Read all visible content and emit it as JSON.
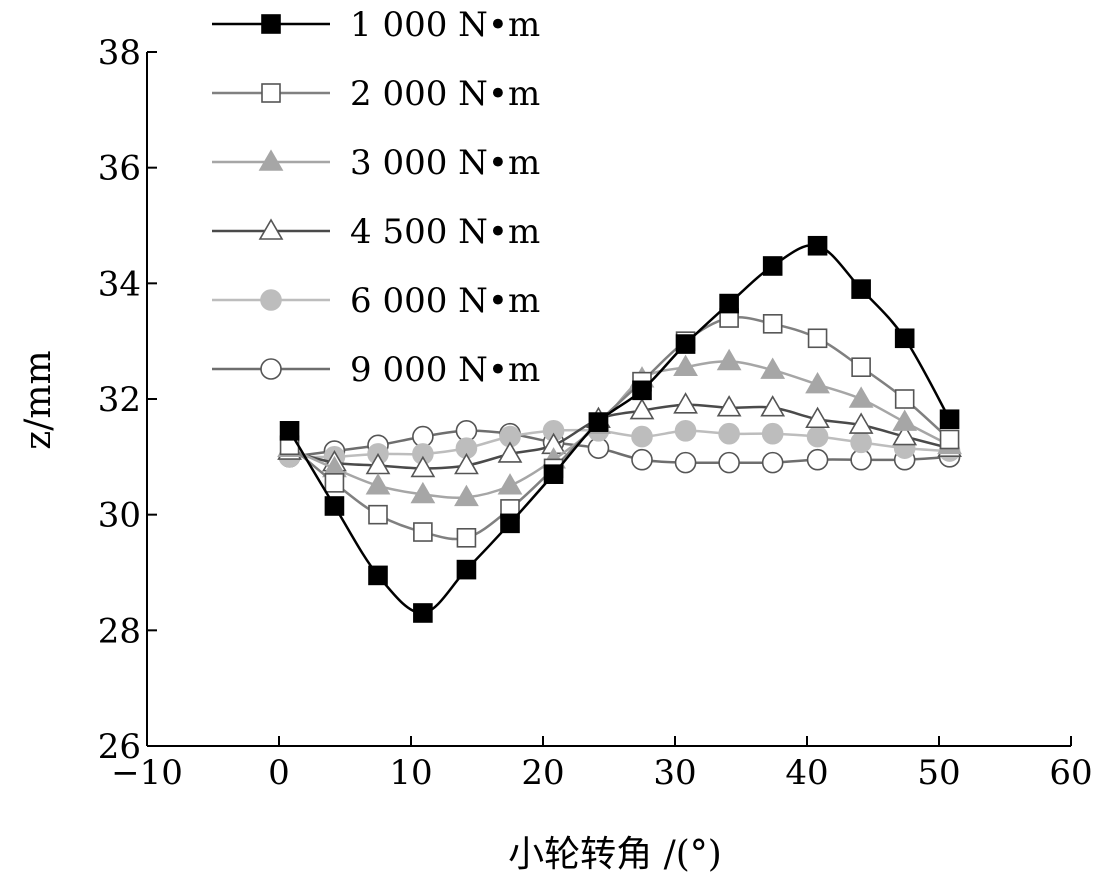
{
  "chart_data": {
    "type": "line",
    "title": "",
    "xlabel": "小轮转角 /(°)",
    "ylabel": "z/mm",
    "xlim": [
      -10,
      60
    ],
    "ylim": [
      26,
      38
    ],
    "xticks": [
      -10,
      0,
      10,
      20,
      30,
      40,
      50,
      60
    ],
    "yticks": [
      26,
      28,
      30,
      32,
      34,
      36,
      38
    ],
    "xtick_labels": [
      "−10",
      "0",
      "10",
      "20",
      "30",
      "40",
      "50",
      "60"
    ],
    "ytick_labels": [
      "26",
      "28",
      "30",
      "32",
      "34",
      "36",
      "38"
    ],
    "grid": false,
    "legend_position": "top-left",
    "x": [
      0.8,
      4.2,
      7.5,
      10.9,
      14.2,
      17.5,
      20.8,
      24.2,
      27.5,
      30.8,
      34.1,
      37.4,
      40.8,
      44.1,
      47.4,
      50.8
    ],
    "series": [
      {
        "name": "1 000 N•m",
        "color": "#000000",
        "marker": "square",
        "filled": true,
        "values": [
          31.45,
          30.15,
          28.95,
          28.3,
          29.05,
          29.85,
          30.7,
          31.6,
          32.15,
          32.95,
          33.65,
          34.3,
          34.65,
          33.9,
          33.05,
          31.65
        ]
      },
      {
        "name": "2 000 N•m",
        "color": "#808080",
        "marker": "square",
        "filled": false,
        "values": [
          31.2,
          30.55,
          30.0,
          29.7,
          29.6,
          30.1,
          30.8,
          31.6,
          32.3,
          33.0,
          33.4,
          33.3,
          33.05,
          32.55,
          32.0,
          31.3
        ]
      },
      {
        "name": "3 000 N•m",
        "color": "#a6a6a6",
        "marker": "triangle",
        "filled": true,
        "values": [
          31.15,
          30.8,
          30.5,
          30.35,
          30.3,
          30.5,
          30.95,
          31.55,
          32.35,
          32.55,
          32.65,
          32.5,
          32.25,
          32.0,
          31.6,
          31.2
        ]
      },
      {
        "name": "4 500 N•m",
        "color": "#4a4a4a",
        "marker": "triangle",
        "filled": false,
        "values": [
          31.1,
          30.9,
          30.85,
          30.8,
          30.85,
          31.05,
          31.2,
          31.65,
          31.8,
          31.9,
          31.85,
          31.85,
          31.65,
          31.55,
          31.35,
          31.15
        ]
      },
      {
        "name": "6 000 N•m",
        "color": "#bdbdbd",
        "marker": "circle",
        "filled": true,
        "values": [
          31.0,
          31.0,
          31.05,
          31.05,
          31.15,
          31.35,
          31.45,
          31.45,
          31.35,
          31.45,
          31.4,
          31.4,
          31.35,
          31.25,
          31.15,
          31.1
        ]
      },
      {
        "name": "9 000 N•m",
        "color": "#6e6e6e",
        "marker": "circle",
        "filled": false,
        "values": [
          31.0,
          31.1,
          31.2,
          31.35,
          31.45,
          31.4,
          31.25,
          31.15,
          30.95,
          30.9,
          30.9,
          30.9,
          30.95,
          30.95,
          30.95,
          31.0
        ]
      }
    ]
  }
}
